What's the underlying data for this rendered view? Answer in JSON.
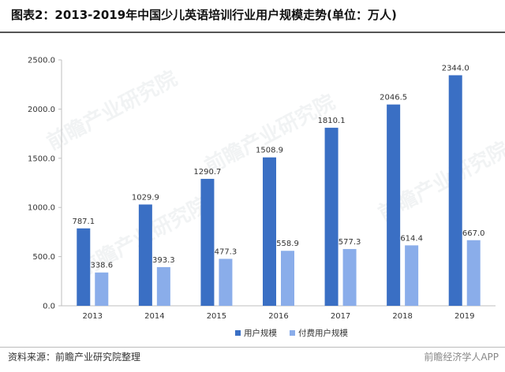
{
  "title": "图表2：2013-2019年中国少儿英语培训行业用户规模走势(单位：万人)",
  "source": "资料来源：前瞻产业研究院整理",
  "brand": "前瞻经济学人APP",
  "watermark": "前瞻产业研究院",
  "colors": {
    "series1": "#3a6fc4",
    "series2": "#8aadea",
    "axis": "#bfbfbf",
    "label": "#333333"
  },
  "chart_data": {
    "type": "bar",
    "categories": [
      "2013",
      "2014",
      "2015",
      "2016",
      "2017",
      "2018",
      "2019"
    ],
    "series": [
      {
        "name": "用户规模",
        "values": [
          787.1,
          1029.9,
          1290.7,
          1508.9,
          1810.1,
          2046.5,
          2344.0
        ]
      },
      {
        "name": "付费用户规模",
        "values": [
          338.6,
          393.3,
          477.3,
          558.9,
          577.3,
          614.4,
          667.0
        ]
      }
    ],
    "yticks": [
      "0.0",
      "500.0",
      "1000.0",
      "1500.0",
      "2000.0",
      "2500.0"
    ],
    "ylim": [
      0,
      2500
    ],
    "grid": false,
    "legend": "bottom-right"
  }
}
